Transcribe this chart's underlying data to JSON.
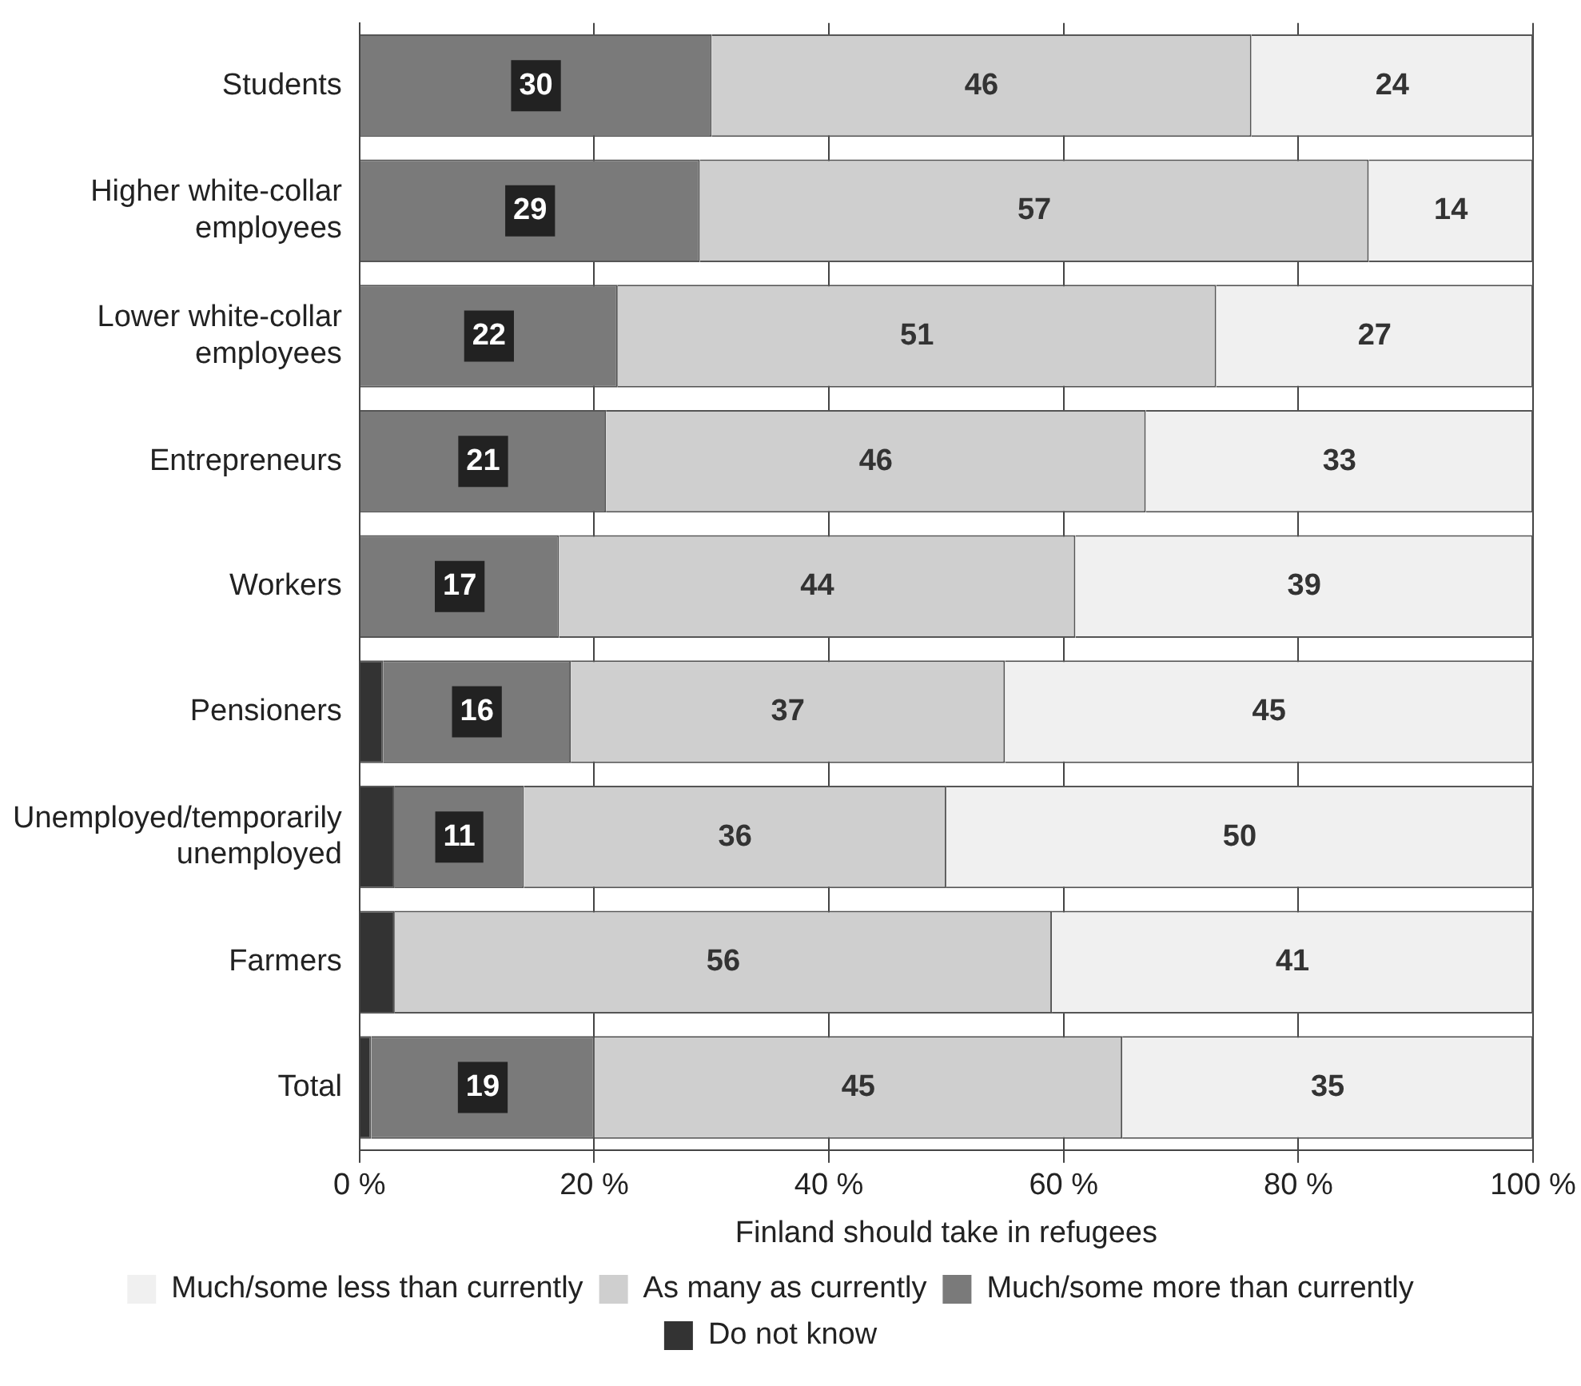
{
  "chart_data": {
    "type": "bar",
    "orientation": "horizontal",
    "stacked": true,
    "xlabel": "Finland should take in refugees",
    "categories": [
      "Students",
      "Higher white-collar employees",
      "Lower white-collar employees",
      "Entrepreneurs",
      "Workers",
      "Pensioners",
      "Unemployed/temporarily unemployed",
      "Farmers",
      "Total"
    ],
    "series": [
      {
        "name": "Do not know",
        "color": "#333333",
        "values": [
          0,
          0,
          0,
          0,
          0,
          2,
          3,
          3,
          1
        ],
        "value_labels": [
          null,
          null,
          null,
          null,
          null,
          null,
          null,
          null,
          null
        ]
      },
      {
        "name": "Much/some more than currently",
        "color": "#7a7a7a",
        "values": [
          30,
          29,
          22,
          21,
          17,
          16,
          11,
          0,
          19
        ],
        "value_labels": [
          "30",
          "29",
          "22",
          "21",
          "17",
          "16",
          "11",
          null,
          "19"
        ]
      },
      {
        "name": "As many as currently",
        "color": "#cfcfcf",
        "values": [
          46,
          57,
          51,
          46,
          44,
          37,
          36,
          56,
          45
        ],
        "value_labels": [
          "46",
          "57",
          "51",
          "46",
          "44",
          "37",
          "36",
          "56",
          "45"
        ]
      },
      {
        "name": "Much/some less than currently",
        "color": "#f0f0f0",
        "values": [
          24,
          14,
          27,
          33,
          39,
          45,
          50,
          41,
          35
        ],
        "value_labels": [
          "24",
          "14",
          "27",
          "33",
          "39",
          "45",
          "50",
          "41",
          "35"
        ]
      }
    ],
    "xlim": [
      0,
      100
    ],
    "xticks": [
      {
        "value": 0,
        "label": "0 %"
      },
      {
        "value": 20,
        "label": "20 %"
      },
      {
        "value": 40,
        "label": "40 %"
      },
      {
        "value": 60,
        "label": "60 %"
      },
      {
        "value": 80,
        "label": "80 %"
      },
      {
        "value": 100,
        "label": "100 %"
      }
    ],
    "grid": "x",
    "legend": "bottom"
  }
}
